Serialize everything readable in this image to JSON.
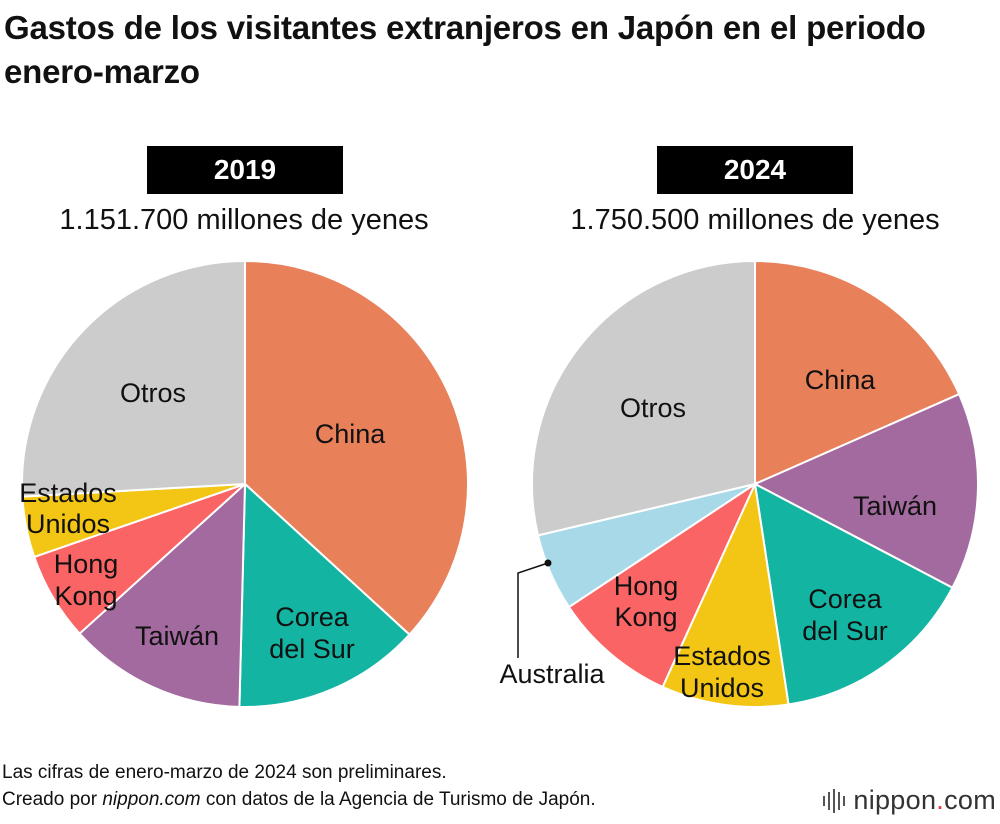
{
  "title": "Gastos de los visitantes extranjeros en Japón en el periodo enero-marzo",
  "chart_data": [
    {
      "type": "pie",
      "year": "2019",
      "total": "1.151.700 millones de yenes",
      "slices": [
        {
          "label": "China",
          "value": 36.8,
          "color": "#E8805A"
        },
        {
          "label": "Corea del Sur",
          "value": 13.6,
          "color": "#13B5A2"
        },
        {
          "label": "Taiwán",
          "value": 12.9,
          "color": "#A26A9E"
        },
        {
          "label": "Hong Kong",
          "value": 6.4,
          "color": "#FA6464"
        },
        {
          "label": "Estados Unidos",
          "value": 4.4,
          "color": "#F3C616"
        },
        {
          "label": "Otros",
          "value": 25.9,
          "color": "#CCCCCC"
        }
      ]
    },
    {
      "type": "pie",
      "year": "2024",
      "total": "1.750.500 millones de yenes",
      "slices": [
        {
          "label": "China",
          "value": 18.4,
          "color": "#E8805A"
        },
        {
          "label": "Taiwán",
          "value": 14.3,
          "color": "#A26A9E"
        },
        {
          "label": "Corea del Sur",
          "value": 14.9,
          "color": "#13B5A2"
        },
        {
          "label": "Estados Unidos",
          "value": 9.2,
          "color": "#F3C616"
        },
        {
          "label": "Hong Kong",
          "value": 8.9,
          "color": "#FA6464"
        },
        {
          "label": "Australia",
          "value": 5.6,
          "color": "#A8D9E8"
        },
        {
          "label": "Otros",
          "value": 28.7,
          "color": "#CCCCCC"
        }
      ]
    }
  ],
  "footnote": "Las cifras de enero-marzo de 2024 son preliminares.",
  "credit": {
    "prefix": "Creado por ",
    "source": "nippon.com",
    "suffix": " con datos de la Agencia de Turismo de Japón."
  },
  "brand": {
    "name": "nippon",
    "dot": ".",
    "tld": "com"
  }
}
